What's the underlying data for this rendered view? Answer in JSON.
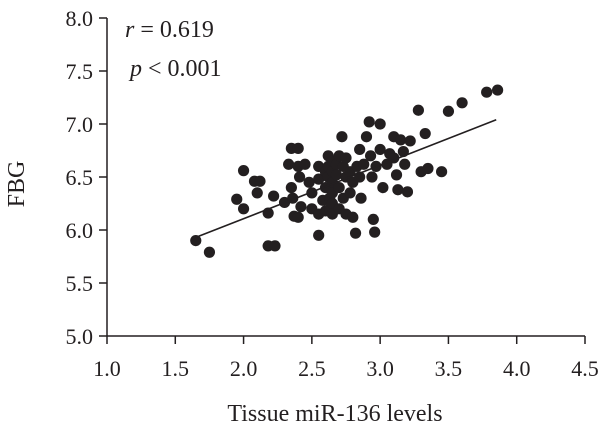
{
  "chart_data": {
    "type": "scatter",
    "title": "",
    "xlabel": "Tissue miR-136 levels",
    "ylabel": "FBG",
    "xlim": [
      1.0,
      4.5
    ],
    "ylim": [
      5.0,
      8.0
    ],
    "x_ticks": [
      "1.0",
      "1.5",
      "2.0",
      "2.5",
      "3.0",
      "3.5",
      "4.0",
      "4.5"
    ],
    "y_ticks": [
      "5.0",
      "5.5",
      "6.0",
      "6.5",
      "7.0",
      "7.5",
      "8.0"
    ],
    "grid": false,
    "legend": "none",
    "annotations": {
      "r_var": "r",
      "r_value": " = 0.619",
      "p_var": "p",
      "p_value": " < 0.001"
    },
    "fit_line": {
      "x": [
        1.65,
        3.85
      ],
      "y": [
        5.93,
        7.04
      ]
    },
    "series": [
      {
        "points": [
          [
            1.65,
            5.9
          ],
          [
            1.75,
            5.79
          ],
          [
            1.95,
            6.29
          ],
          [
            2.0,
            6.56
          ],
          [
            2.0,
            6.2
          ],
          [
            2.08,
            6.46
          ],
          [
            2.12,
            6.46
          ],
          [
            2.1,
            6.35
          ],
          [
            2.18,
            6.16
          ],
          [
            2.18,
            5.85
          ],
          [
            2.23,
            5.85
          ],
          [
            2.22,
            6.32
          ],
          [
            2.3,
            6.26
          ],
          [
            2.33,
            6.62
          ],
          [
            2.35,
            6.77
          ],
          [
            2.35,
            6.4
          ],
          [
            2.36,
            6.3
          ],
          [
            2.37,
            6.13
          ],
          [
            2.4,
            6.77
          ],
          [
            2.4,
            6.6
          ],
          [
            2.41,
            6.5
          ],
          [
            2.42,
            6.22
          ],
          [
            2.4,
            6.12
          ],
          [
            2.45,
            6.62
          ],
          [
            2.48,
            6.45
          ],
          [
            2.5,
            6.35
          ],
          [
            2.5,
            6.2
          ],
          [
            2.55,
            6.6
          ],
          [
            2.55,
            6.48
          ],
          [
            2.55,
            6.15
          ],
          [
            2.55,
            5.95
          ],
          [
            2.58,
            6.28
          ],
          [
            2.6,
            6.55
          ],
          [
            2.6,
            6.4
          ],
          [
            2.6,
            6.18
          ],
          [
            2.62,
            6.7
          ],
          [
            2.62,
            6.6
          ],
          [
            2.62,
            6.5
          ],
          [
            2.63,
            6.3
          ],
          [
            2.63,
            6.2
          ],
          [
            2.65,
            6.65
          ],
          [
            2.65,
            6.55
          ],
          [
            2.65,
            6.45
          ],
          [
            2.65,
            6.35
          ],
          [
            2.65,
            6.25
          ],
          [
            2.65,
            6.15
          ],
          [
            2.68,
            6.62
          ],
          [
            2.68,
            6.52
          ],
          [
            2.7,
            6.7
          ],
          [
            2.7,
            6.4
          ],
          [
            2.7,
            6.2
          ],
          [
            2.72,
            6.88
          ],
          [
            2.73,
            6.6
          ],
          [
            2.73,
            6.3
          ],
          [
            2.75,
            6.68
          ],
          [
            2.75,
            6.5
          ],
          [
            2.75,
            6.15
          ],
          [
            2.78,
            6.55
          ],
          [
            2.78,
            6.35
          ],
          [
            2.8,
            6.45
          ],
          [
            2.8,
            6.12
          ],
          [
            2.82,
            5.97
          ],
          [
            2.83,
            6.6
          ],
          [
            2.85,
            6.76
          ],
          [
            2.85,
            6.5
          ],
          [
            2.86,
            6.3
          ],
          [
            2.88,
            6.62
          ],
          [
            2.9,
            6.88
          ],
          [
            2.92,
            7.02
          ],
          [
            2.93,
            6.7
          ],
          [
            2.94,
            6.5
          ],
          [
            2.95,
            6.1
          ],
          [
            2.96,
            5.98
          ],
          [
            2.97,
            6.6
          ],
          [
            3.0,
            7.0
          ],
          [
            3.0,
            6.76
          ],
          [
            3.02,
            6.4
          ],
          [
            3.05,
            6.62
          ],
          [
            3.07,
            6.72
          ],
          [
            3.1,
            6.88
          ],
          [
            3.1,
            6.68
          ],
          [
            3.12,
            6.52
          ],
          [
            3.13,
            6.38
          ],
          [
            3.15,
            6.85
          ],
          [
            3.17,
            6.74
          ],
          [
            3.18,
            6.62
          ],
          [
            3.2,
            6.36
          ],
          [
            3.22,
            6.84
          ],
          [
            3.28,
            7.13
          ],
          [
            3.3,
            6.55
          ],
          [
            3.33,
            6.91
          ],
          [
            3.35,
            6.58
          ],
          [
            3.45,
            6.55
          ],
          [
            3.5,
            7.12
          ],
          [
            3.6,
            7.2
          ],
          [
            3.78,
            7.3
          ],
          [
            3.86,
            7.32
          ]
        ]
      }
    ],
    "marker_color": "#231f20"
  }
}
